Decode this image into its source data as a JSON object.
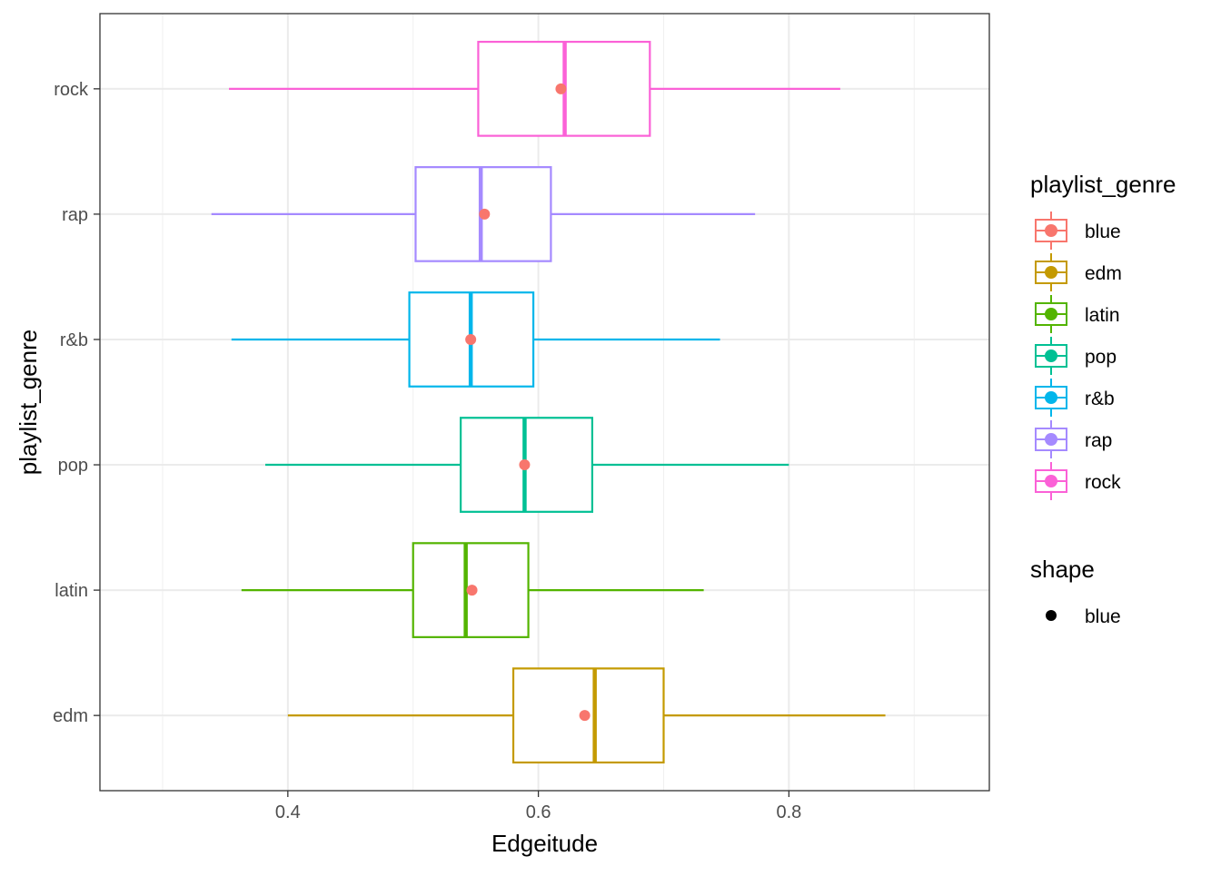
{
  "chart_data": {
    "type": "boxplot",
    "orientation": "horizontal",
    "xlabel": "Edgeitude",
    "ylabel": "playlist_genre",
    "xlim": [
      0.25,
      0.96
    ],
    "x_ticks": [
      0.4,
      0.6,
      0.8
    ],
    "x_tick_labels": [
      "0.4",
      "0.6",
      "0.8"
    ],
    "x_minor_ticks": [
      0.3,
      0.5,
      0.7,
      0.9
    ],
    "categories": [
      "edm",
      "latin",
      "pop",
      "r&b",
      "rap",
      "rock"
    ],
    "grid": true,
    "theme": "bw",
    "series": [
      {
        "name": "edm",
        "color": "#C49A00",
        "whisker_low": 0.4,
        "q1": 0.58,
        "median": 0.645,
        "q3": 0.7,
        "whisker_high": 0.877,
        "mean": 0.637
      },
      {
        "name": "latin",
        "color": "#53B400",
        "whisker_low": 0.363,
        "q1": 0.5,
        "median": 0.542,
        "q3": 0.592,
        "whisker_high": 0.732,
        "mean": 0.547
      },
      {
        "name": "pop",
        "color": "#00C094",
        "whisker_low": 0.382,
        "q1": 0.538,
        "median": 0.589,
        "q3": 0.643,
        "whisker_high": 0.8,
        "mean": 0.589
      },
      {
        "name": "r&b",
        "color": "#00B6EB",
        "whisker_low": 0.355,
        "q1": 0.497,
        "median": 0.546,
        "q3": 0.596,
        "whisker_high": 0.745,
        "mean": 0.546
      },
      {
        "name": "rap",
        "color": "#A58AFF",
        "whisker_low": 0.339,
        "q1": 0.502,
        "median": 0.554,
        "q3": 0.61,
        "whisker_high": 0.773,
        "mean": 0.557
      },
      {
        "name": "rock",
        "color": "#FB61D7",
        "whisker_low": 0.353,
        "q1": 0.552,
        "median": 0.621,
        "q3": 0.689,
        "whisker_high": 0.841,
        "mean": 0.618
      }
    ],
    "mean_point_color": "#F8766D",
    "legend": {
      "placement": "right",
      "genre": {
        "title": "playlist_genre",
        "entries": [
          {
            "label": "blue",
            "color": "#F8766D"
          },
          {
            "label": "edm",
            "color": "#C49A00"
          },
          {
            "label": "latin",
            "color": "#53B400"
          },
          {
            "label": "pop",
            "color": "#00C094"
          },
          {
            "label": "r&b",
            "color": "#00B6EB"
          },
          {
            "label": "rap",
            "color": "#A58AFF"
          },
          {
            "label": "rock",
            "color": "#FB61D7"
          }
        ]
      },
      "shape": {
        "title": "shape",
        "entries": [
          {
            "label": "blue",
            "color": "#000000"
          }
        ]
      }
    }
  }
}
